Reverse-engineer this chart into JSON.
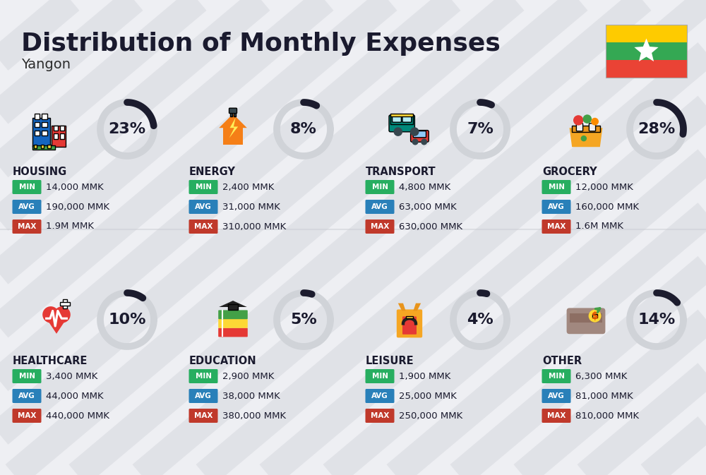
{
  "title": "Distribution of Monthly Expenses",
  "subtitle": "Yangon",
  "background_color": "#eeeff3",
  "categories": [
    {
      "name": "HOUSING",
      "percent": 23,
      "min": "14,000 MMK",
      "avg": "190,000 MMK",
      "max": "1.9M MMK",
      "row": 0,
      "col": 0
    },
    {
      "name": "ENERGY",
      "percent": 8,
      "min": "2,400 MMK",
      "avg": "31,000 MMK",
      "max": "310,000 MMK",
      "row": 0,
      "col": 1
    },
    {
      "name": "TRANSPORT",
      "percent": 7,
      "min": "4,800 MMK",
      "avg": "63,000 MMK",
      "max": "630,000 MMK",
      "row": 0,
      "col": 2
    },
    {
      "name": "GROCERY",
      "percent": 28,
      "min": "12,000 MMK",
      "avg": "160,000 MMK",
      "max": "1.6M MMK",
      "row": 0,
      "col": 3
    },
    {
      "name": "HEALTHCARE",
      "percent": 10,
      "min": "3,400 MMK",
      "avg": "44,000 MMK",
      "max": "440,000 MMK",
      "row": 1,
      "col": 0
    },
    {
      "name": "EDUCATION",
      "percent": 5,
      "min": "2,900 MMK",
      "avg": "38,000 MMK",
      "max": "380,000 MMK",
      "row": 1,
      "col": 1
    },
    {
      "name": "LEISURE",
      "percent": 4,
      "min": "1,900 MMK",
      "avg": "25,000 MMK",
      "max": "250,000 MMK",
      "row": 1,
      "col": 2
    },
    {
      "name": "OTHER",
      "percent": 14,
      "min": "6,300 MMK",
      "avg": "81,000 MMK",
      "max": "810,000 MMK",
      "row": 1,
      "col": 3
    }
  ],
  "min_color": "#27ae60",
  "avg_color": "#2980b9",
  "max_color": "#c0392b",
  "donut_bg_color": "#d0d3d8",
  "donut_fg_color": "#1c1c2e",
  "title_fontsize": 26,
  "subtitle_fontsize": 14,
  "category_fontsize": 10.5,
  "value_fontsize": 9.5,
  "percent_fontsize": 16,
  "flag_colors": [
    "#FECB00",
    "#34A853",
    "#EA4335"
  ],
  "stripe_color": "#d8dae0",
  "stripe_alpha": 0.6
}
